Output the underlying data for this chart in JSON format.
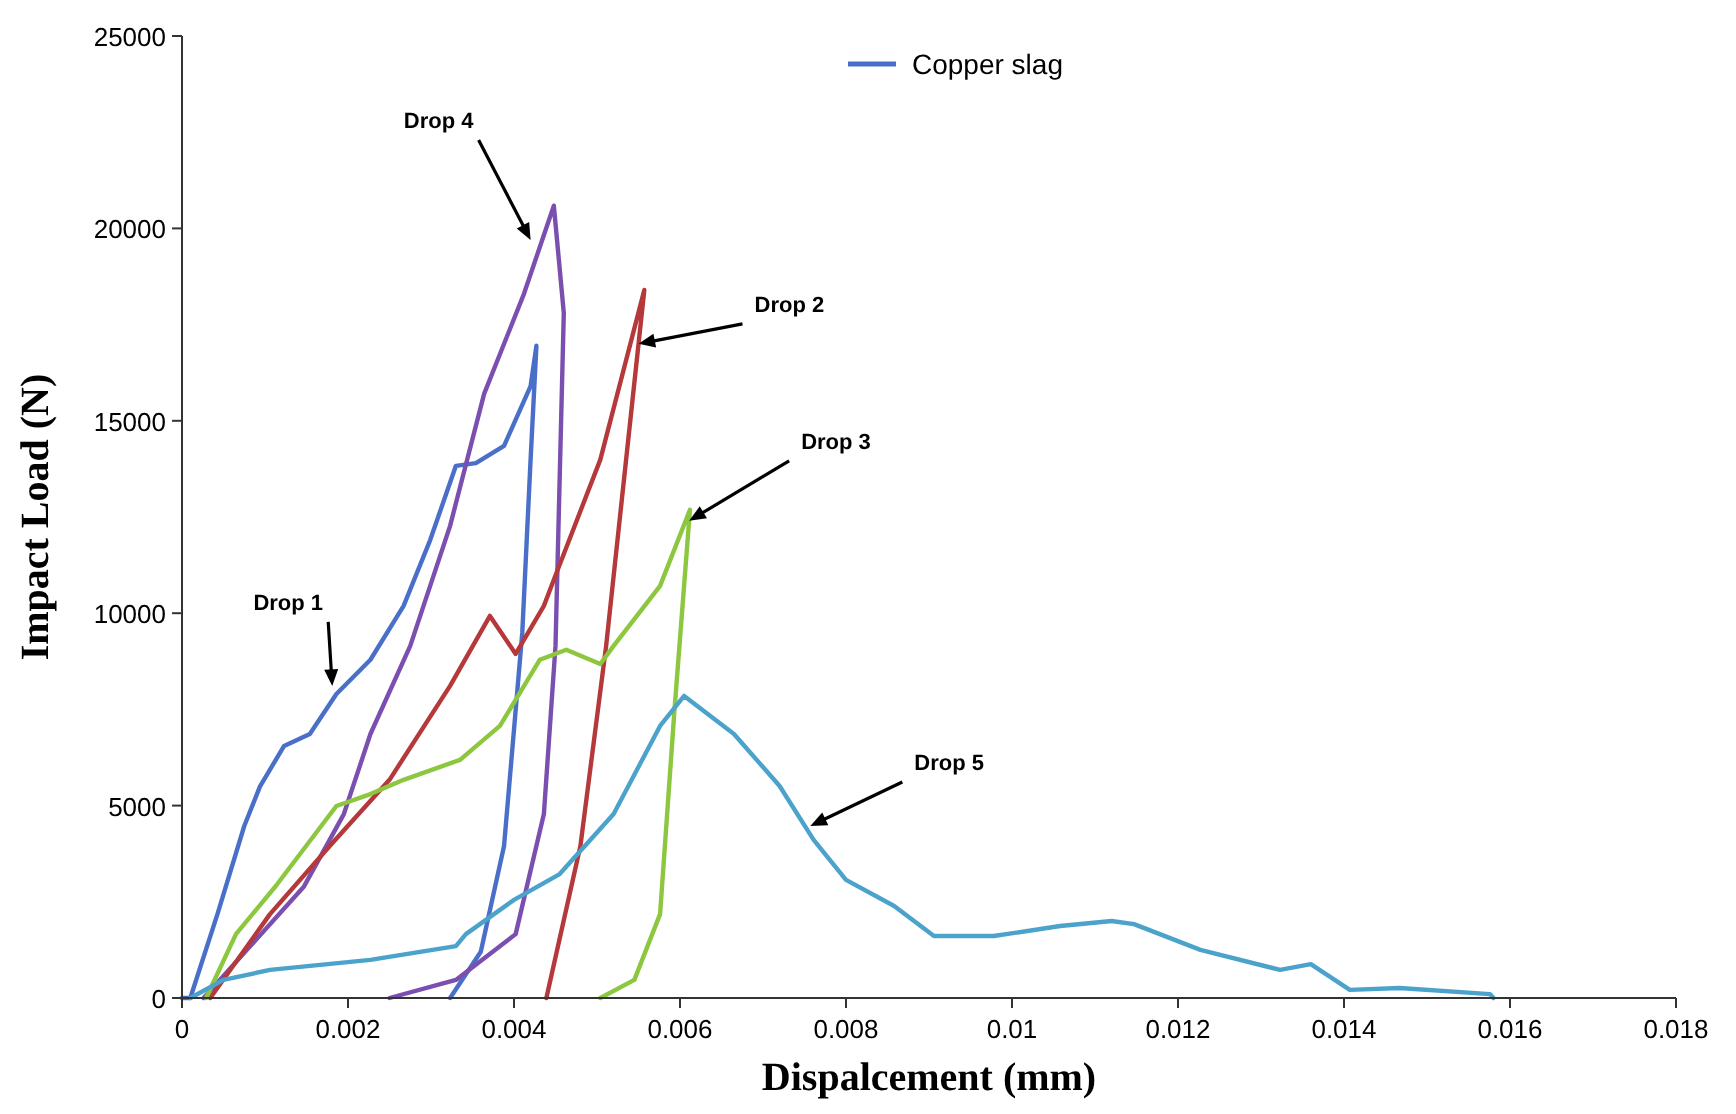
{
  "chart_data": {
    "type": "line",
    "xlabel": "Dispalcement (mm)",
    "ylabel": "Impact Load (N)",
    "xlim": [
      0,
      0.018
    ],
    "xticks": [
      0,
      0.002,
      0.004,
      0.006,
      0.008,
      0.01,
      0.012,
      0.014,
      0.016,
      0.018
    ],
    "ylim": [
      0,
      25000
    ],
    "yticks": [
      0,
      5000,
      10000,
      15000,
      20000,
      25000
    ],
    "grid": false,
    "legend": "top",
    "marker": "none",
    "line_style": "solid",
    "series": [
      {
        "name": "Copper slag",
        "color": "#4a6fc9",
        "x": [
          0,
          0.0001,
          0.00043,
          0.00075,
          0.00094,
          0.00123,
          0.00154,
          0.00186,
          0.00227,
          0.00267,
          0.00299,
          0.0033,
          0.00354,
          0.00388,
          0.0042,
          0.00427,
          0.0042,
          0.0041,
          0.00388,
          0.0036,
          0.00323
        ],
        "values": [
          0,
          0,
          2200,
          4470,
          5500,
          6550,
          6860,
          7900,
          8790,
          10190,
          11900,
          13830,
          13900,
          14350,
          15900,
          16950,
          14000,
          9500,
          3950,
          1200,
          0
        ]
      },
      {
        "color": "#7b4fb0",
        "x": [
          0.00026,
          0.00147,
          0.00195,
          0.00227,
          0.00275,
          0.00323,
          0.00364,
          0.00412,
          0.00448,
          0.0046,
          0.0045,
          0.00436,
          0.00402,
          0.0033,
          0.0025
        ],
        "values": [
          0,
          2900,
          4780,
          6860,
          9150,
          12270,
          15700,
          18300,
          20590,
          17800,
          9150,
          4780,
          1660,
          470,
          0
        ]
      },
      {
        "color": "#b5383a",
        "x": [
          0.00034,
          0.00106,
          0.00178,
          0.0025,
          0.00323,
          0.00371,
          0.00402,
          0.00436,
          0.00448,
          0.00504,
          0.00557,
          0.00511,
          0.0048,
          0.00439
        ],
        "values": [
          0,
          2180,
          3950,
          5670,
          8110,
          9930,
          8940,
          10190,
          10870,
          13990,
          18400,
          9150,
          3950,
          0
        ]
      },
      {
        "color": "#8dc63f",
        "x": [
          0.00029,
          0.00065,
          0.00113,
          0.00186,
          0.00227,
          0.00267,
          0.00335,
          0.00383,
          0.00431,
          0.00463,
          0.00504,
          0.0052,
          0.00576,
          0.00612,
          0.00593,
          0.00576,
          0.00545,
          0.00504
        ],
        "values": [
          0,
          1660,
          2910,
          4990,
          5300,
          5670,
          6190,
          7070,
          8790,
          9050,
          8680,
          9150,
          10710,
          12690,
          7380,
          2180,
          470,
          0
        ]
      },
      {
        "color": "#4ba3cc",
        "x": [
          0.0001,
          0.0005,
          0.00106,
          0.00227,
          0.0033,
          0.00342,
          0.004,
          0.00455,
          0.0052,
          0.00576,
          0.00605,
          0.00665,
          0.0072,
          0.00761,
          0.008,
          0.00858,
          0.00906,
          0.00978,
          0.01058,
          0.0112,
          0.01147,
          0.01227,
          0.01323,
          0.0136,
          0.01407,
          0.01467,
          0.01576,
          0.0158
        ],
        "values": [
          0,
          470,
          730,
          990,
          1350,
          1660,
          2550,
          3220,
          4780,
          7070,
          7850,
          6860,
          5510,
          4110,
          3070,
          2390,
          1610,
          1610,
          1870,
          2000,
          1920,
          1250,
          730,
          880,
          210,
          260,
          100,
          0
        ]
      }
    ],
    "annotations": [
      {
        "text": "Drop 1",
        "x": 0.00181,
        "y": 8110
      },
      {
        "text": "Drop 4",
        "x": 0.0042,
        "y": 19700
      },
      {
        "text": "Drop 2",
        "x": 0.0055,
        "y": 17000
      },
      {
        "text": "Drop 3",
        "x": 0.00611,
        "y": 12400
      },
      {
        "text": "Drop 5",
        "x": 0.00757,
        "y": 4470
      }
    ]
  }
}
